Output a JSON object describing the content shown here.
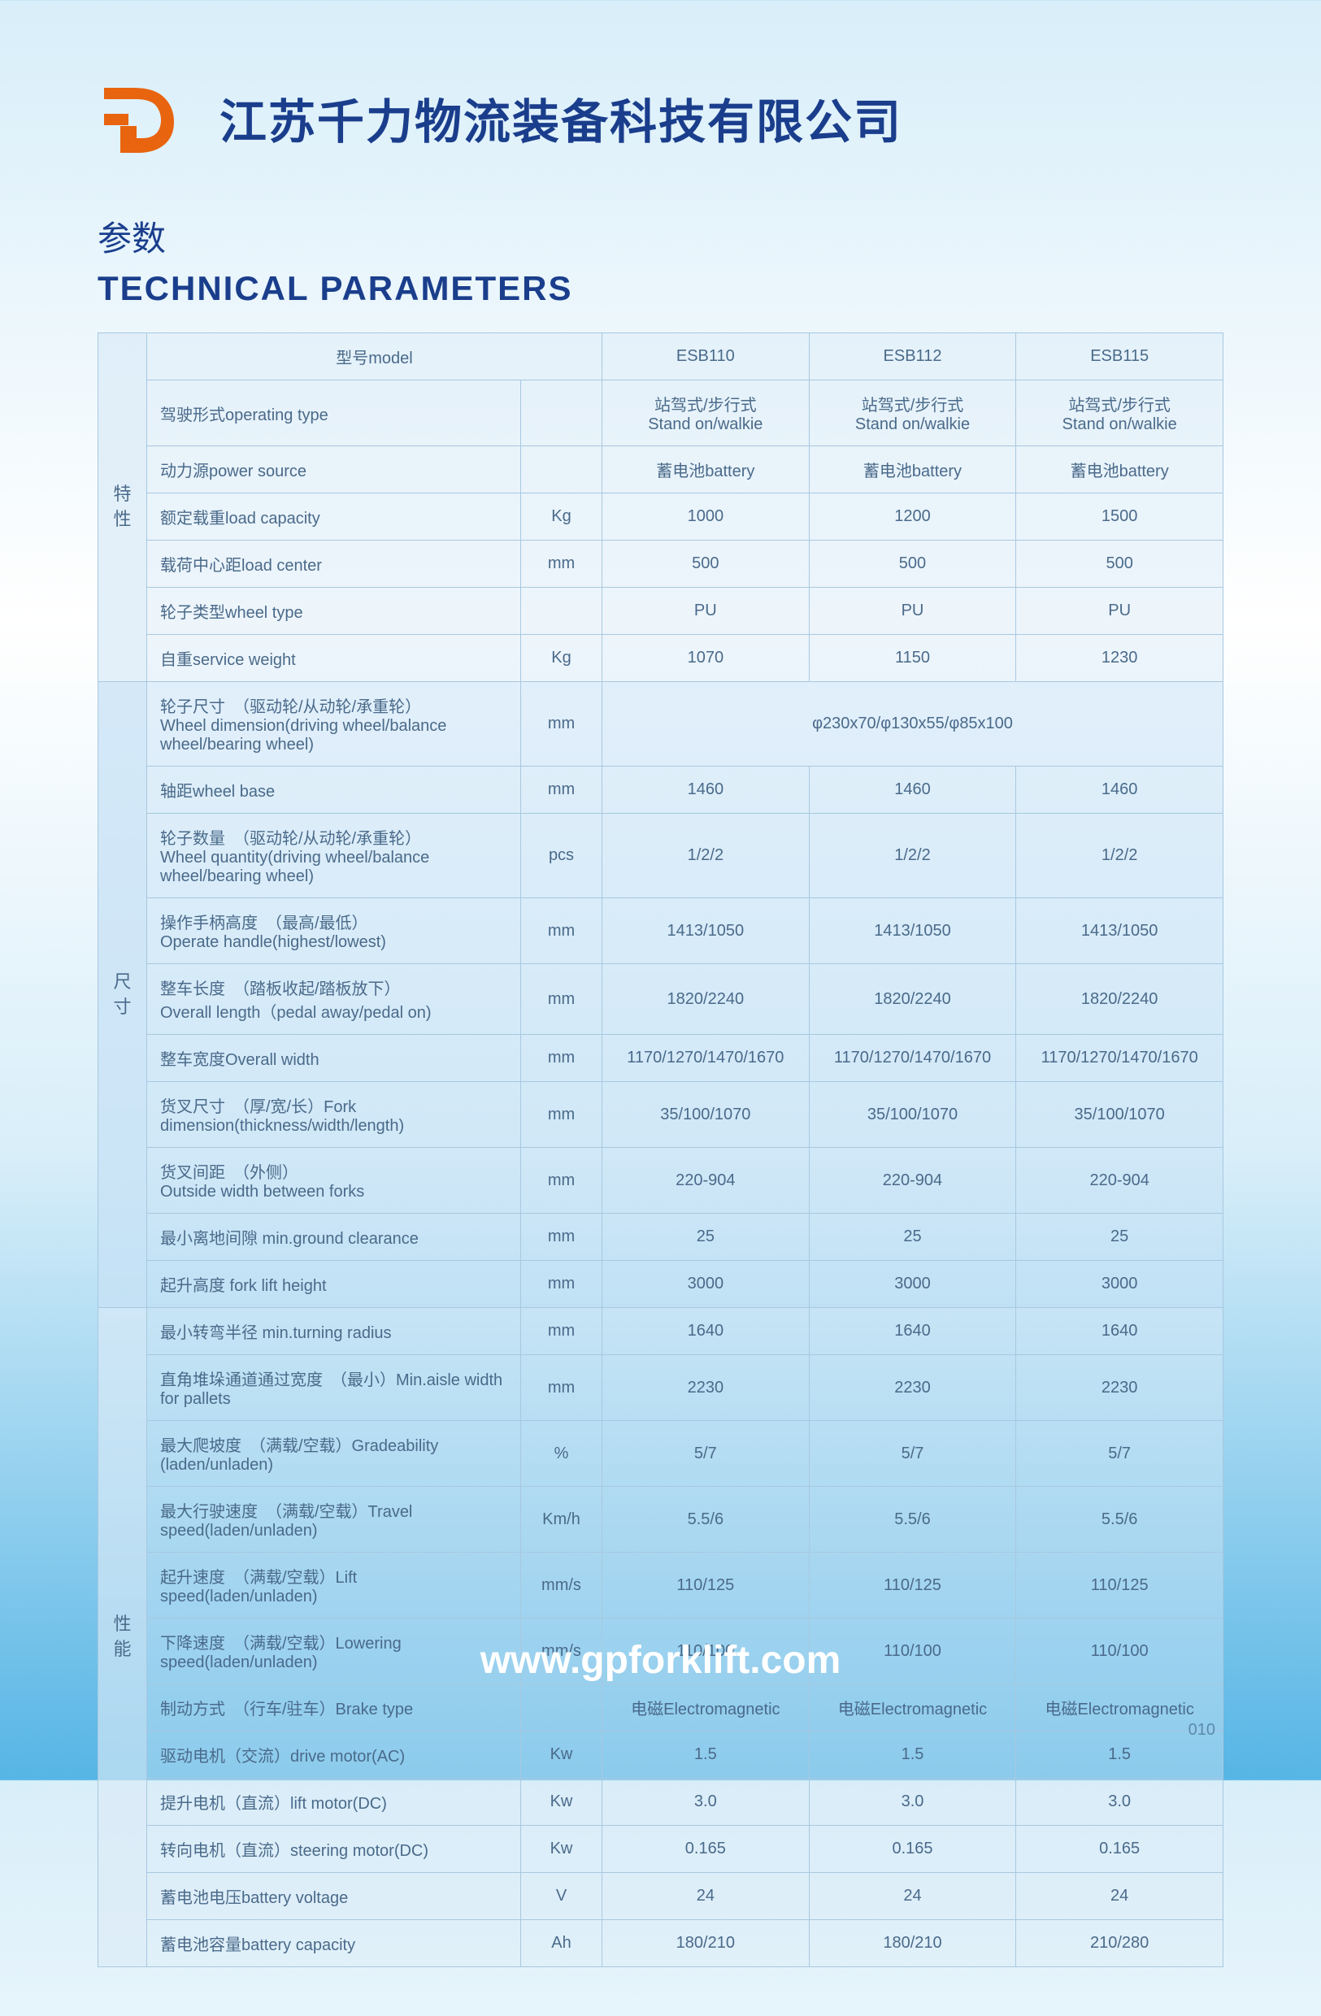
{
  "company_name": "江苏千力物流装备科技有限公司",
  "section_title_cn": "参数",
  "section_title_en": "TECHNICAL PARAMETERS",
  "footer_url": "www.gpforklift.com",
  "page_number": "010",
  "colors": {
    "brand_orange": "#e8640f",
    "brand_blue": "#1a3e8c",
    "text": "#4a6a8a",
    "border": "#a8c8e0"
  },
  "groups": [
    {
      "key": "g1",
      "label_1": "特",
      "label_2": "性",
      "shade": "shade-a",
      "rows": [
        {
          "label": "型号model",
          "unit": "",
          "vals": [
            "ESB110",
            "ESB112",
            "ESB115"
          ]
        },
        {
          "label": "驾驶形式operating type",
          "unit": "",
          "vals": [
            "站驾式/步行式\nStand on/walkie",
            "站驾式/步行式\nStand on/walkie",
            "站驾式/步行式\nStand on/walkie"
          ]
        },
        {
          "label": "动力源power source",
          "unit": "",
          "vals": [
            "蓄电池battery",
            "蓄电池battery",
            "蓄电池battery"
          ]
        },
        {
          "label": "额定载重load capacity",
          "unit": "Kg",
          "vals": [
            "1000",
            "1200",
            "1500"
          ]
        },
        {
          "label": "载荷中心距load center",
          "unit": "mm",
          "vals": [
            "500",
            "500",
            "500"
          ]
        },
        {
          "label": "轮子类型wheel type",
          "unit": "",
          "vals": [
            "PU",
            "PU",
            "PU"
          ]
        },
        {
          "label": "自重service weight",
          "unit": "Kg",
          "vals": [
            "1070",
            "1150",
            "1230"
          ]
        }
      ]
    },
    {
      "key": "g2",
      "label_1": "尺",
      "label_2": "寸",
      "shade": "shade-b",
      "rows": [
        {
          "label": "轮子尺寸　（驱动轮/从动轮/承重轮）\nWheel dimension(driving wheel/balance wheel/bearing wheel)",
          "unit": "mm",
          "span": true,
          "vals": [
            "φ230x70/φ130x55/φ85x100"
          ]
        },
        {
          "label": "轴距wheel base",
          "unit": "mm",
          "vals": [
            "1460",
            "1460",
            "1460"
          ]
        },
        {
          "label": "轮子数量　（驱动轮/从动轮/承重轮）\nWheel quantity(driving wheel/balance wheel/bearing wheel)",
          "unit": "pcs",
          "vals": [
            "1/2/2",
            "1/2/2",
            "1/2/2"
          ]
        },
        {
          "label": "操作手柄高度　（最高/最低）\nOperate handle(highest/lowest)",
          "unit": "mm",
          "vals": [
            "1413/1050",
            "1413/1050",
            "1413/1050"
          ]
        },
        {
          "label": "整车长度　（踏板收起/踏板放下）\nOverall length（pedal away/pedal on)",
          "unit": "mm",
          "vals": [
            "1820/2240",
            "1820/2240",
            "1820/2240"
          ]
        },
        {
          "label": "整车宽度Overall width",
          "unit": "mm",
          "vals": [
            "1170/1270/1470/1670",
            "1170/1270/1470/1670",
            "1170/1270/1470/1670"
          ]
        },
        {
          "label": "货叉尺寸　（厚/宽/长）Fork dimension(thickness/width/length)",
          "unit": "mm",
          "vals": [
            "35/100/1070",
            "35/100/1070",
            "35/100/1070"
          ]
        },
        {
          "label": "货叉间距　（外侧）\nOutside width between forks",
          "unit": "mm",
          "vals": [
            "220-904",
            "220-904",
            "220-904"
          ]
        },
        {
          "label": "最小离地间隙 min.ground clearance",
          "unit": "mm",
          "vals": [
            "25",
            "25",
            "25"
          ]
        },
        {
          "label": "起升高度 fork lift height",
          "unit": "mm",
          "vals": [
            "3000",
            "3000",
            "3000"
          ]
        }
      ]
    },
    {
      "key": "g3",
      "label_1": "性",
      "label_2": "能",
      "shade": "shade-c",
      "rows": [
        {
          "label": "最小转弯半径 min.turning radius",
          "unit": "mm",
          "vals": [
            "1640",
            "1640",
            "1640"
          ]
        },
        {
          "label": "直角堆垛通道通过宽度　（最小）Min.aisle width for pallets",
          "unit": "mm",
          "vals": [
            "2230",
            "2230",
            "2230"
          ]
        },
        {
          "label": "最大爬坡度　（满载/空载）Gradeability (laden/unladen)",
          "unit": "%",
          "vals": [
            "5/7",
            "5/7",
            "5/7"
          ]
        },
        {
          "label": "最大行驶速度　（满载/空载）Travel speed(laden/unladen)",
          "unit": "Km/h",
          "vals": [
            "5.5/6",
            "5.5/6",
            "5.5/6"
          ]
        },
        {
          "label": "起升速度　（满载/空载）Lift speed(laden/unladen)",
          "unit": "mm/s",
          "vals": [
            "110/125",
            "110/125",
            "110/125"
          ]
        },
        {
          "label": "下降速度　（满载/空载）Lowering speed(laden/unladen)",
          "unit": "mm/s",
          "vals": [
            "110/100",
            "110/100",
            "110/100"
          ]
        },
        {
          "label": "制动方式　（行车/驻车）Brake type",
          "unit": "",
          "vals": [
            "电磁Electromagnetic",
            "电磁Electromagnetic",
            "电磁Electromagnetic"
          ]
        },
        {
          "label": "驱动电机（交流）drive motor(AC)",
          "unit": "Kw",
          "vals": [
            "1.5",
            "1.5",
            "1.5"
          ]
        },
        {
          "label": "提升电机（直流）lift motor(DC)",
          "unit": "Kw",
          "vals": [
            "3.0",
            "3.0",
            "3.0"
          ]
        },
        {
          "label": "转向电机（直流）steering motor(DC)",
          "unit": "Kw",
          "vals": [
            "0.165",
            "0.165",
            "0.165"
          ]
        },
        {
          "label": "蓄电池电压battery voltage",
          "unit": "V",
          "vals": [
            "24",
            "24",
            "24"
          ]
        },
        {
          "label": "蓄电池容量battery capacity",
          "unit": "Ah",
          "vals": [
            "180/210",
            "180/210",
            "210/280"
          ]
        }
      ]
    }
  ]
}
